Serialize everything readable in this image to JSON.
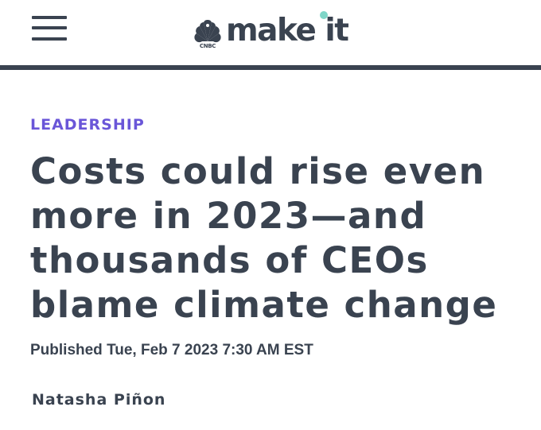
{
  "header": {
    "menu_icon": "hamburger-menu-icon",
    "logo": {
      "network_icon": "peacock-logo-icon",
      "network_text": "CNBC",
      "brand_text": "make it",
      "accent_color": "#7fd6c8"
    }
  },
  "article": {
    "category": "LEADERSHIP",
    "category_color": "#6a56d8",
    "headline_lines": [
      "Costs could rise even",
      "more in 2023—and",
      "thousands of CEOs",
      "blame climate change"
    ],
    "published": "Published Tue, Feb 7 2023 7:30 AM EST",
    "author": "Natasha Piñon"
  },
  "colors": {
    "text": "#3a4350",
    "background": "#ffffff"
  }
}
